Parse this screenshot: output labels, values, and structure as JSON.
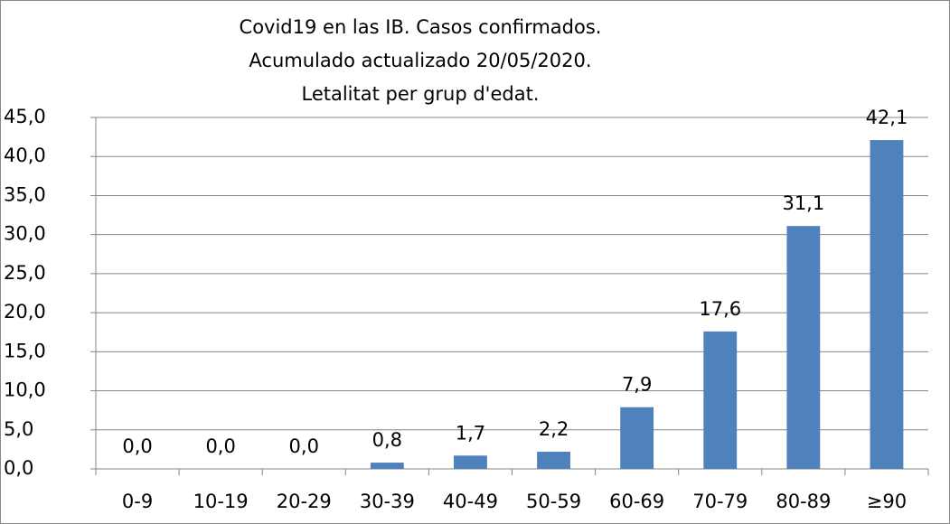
{
  "chart_data": {
    "type": "bar",
    "title": [
      "Covid19 en las IB. Casos confirmados.",
      "Acumulado actualizado 20/05/2020.",
      "Letalitat per grup d'edat."
    ],
    "categories": [
      "0-9",
      "10-19",
      "20-29",
      "30-39",
      "40-49",
      "50-59",
      "60-69",
      "70-79",
      "80-89",
      "≥90"
    ],
    "values": [
      0.0,
      0.0,
      0.0,
      0.8,
      1.7,
      2.2,
      7.9,
      17.6,
      31.1,
      42.1
    ],
    "value_labels": [
      "0,0",
      "0,0",
      "0,0",
      "0,8",
      "1,7",
      "2,2",
      "7,9",
      "17,6",
      "31,1",
      "42,1"
    ],
    "color": "#4f81bd",
    "ylim": [
      0,
      45
    ],
    "yticks": [
      {
        "value": 0,
        "label": "0,0"
      },
      {
        "value": 5,
        "label": "5,0"
      },
      {
        "value": 10,
        "label": "10,0"
      },
      {
        "value": 15,
        "label": "15,0"
      },
      {
        "value": 20,
        "label": "20,0"
      },
      {
        "value": 25,
        "label": "25,0"
      },
      {
        "value": 30,
        "label": "30,0"
      },
      {
        "value": 35,
        "label": "35,0"
      },
      {
        "value": 40,
        "label": "40,0"
      },
      {
        "value": 45,
        "label": "45,0"
      }
    ],
    "grid": true
  }
}
